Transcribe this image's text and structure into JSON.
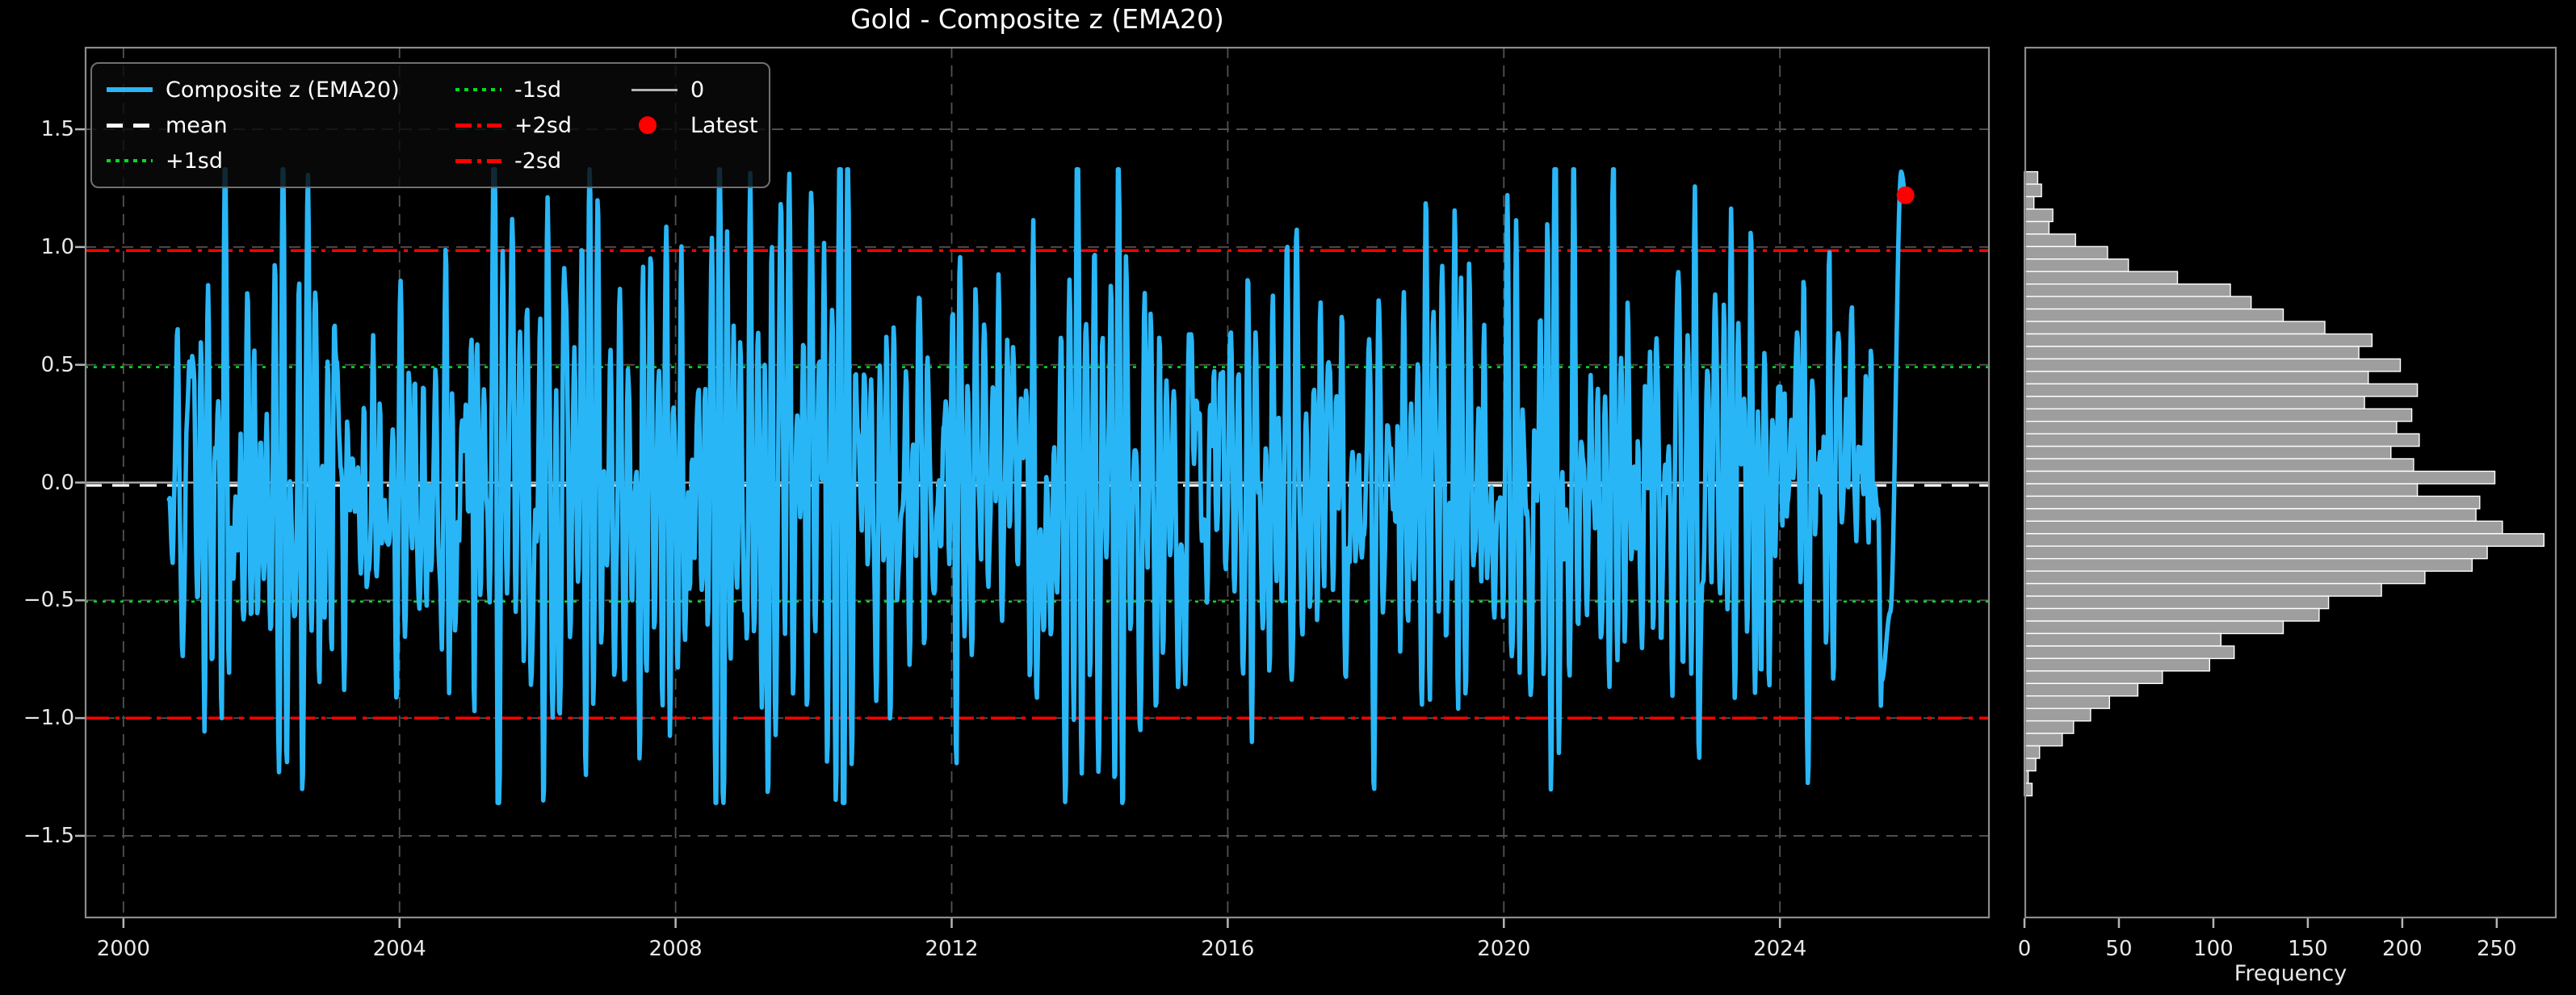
{
  "title": "Gold - Composite z (EMA20)",
  "colors": {
    "background": "#000000",
    "text": "#e8e8e8",
    "spine": "#8c8c8c",
    "grid": "#525252",
    "tick": "#b5b5b5",
    "series": "#29b6f6",
    "mean_line": "#ffffff",
    "sd1_line": "#00dd22",
    "sd2_line": "#ff0000",
    "zero_line": "#b3b3b3",
    "latest_marker": "#ff0000",
    "hist_bar_fill": "#9e9e9e",
    "hist_bar_edge": "#ffffff"
  },
  "main_plot": {
    "xticks": [
      {
        "value": 2000,
        "label": "2000"
      },
      {
        "value": 2004,
        "label": "2004"
      },
      {
        "value": 2008,
        "label": "2008"
      },
      {
        "value": 2012,
        "label": "2012"
      },
      {
        "value": 2016,
        "label": "2016"
      },
      {
        "value": 2020,
        "label": "2020"
      },
      {
        "value": 2024,
        "label": "2024"
      }
    ],
    "yticks": [
      {
        "value": 1.5,
        "label": "1.5"
      },
      {
        "value": 1.0,
        "label": "1.0"
      },
      {
        "value": 0.5,
        "label": "0.5"
      },
      {
        "value": 0.0,
        "label": "0.0"
      },
      {
        "value": -0.5,
        "label": "−0.5"
      },
      {
        "value": -1.0,
        "label": "−1.0"
      },
      {
        "value": -1.5,
        "label": "−1.5"
      }
    ]
  },
  "histogram": {
    "xlabel": "Frequency",
    "xticks": [
      {
        "value": 0,
        "label": "0"
      },
      {
        "value": 50,
        "label": "50"
      },
      {
        "value": 100,
        "label": "100"
      },
      {
        "value": 150,
        "label": "150"
      },
      {
        "value": 200,
        "label": "200"
      },
      {
        "value": 250,
        "label": "250"
      }
    ]
  },
  "legend": {
    "columns": [
      [
        {
          "label": "Composite z (EMA20)",
          "swatch": "line-solid-cyan"
        },
        {
          "label": "mean",
          "swatch": "line-dashed-white"
        },
        {
          "label": "+1sd",
          "swatch": "line-dotted-green"
        }
      ],
      [
        {
          "label": "-1sd",
          "swatch": "line-dotted-green"
        },
        {
          "label": "+2sd",
          "swatch": "line-dashdot-red"
        },
        {
          "label": "-2sd",
          "swatch": "line-dashdot-red"
        }
      ],
      [
        {
          "label": "0",
          "swatch": "line-solid-gray"
        },
        {
          "label": "Latest",
          "swatch": "marker-red-dot"
        }
      ]
    ]
  },
  "chart_data": [
    {
      "type": "line",
      "title": "Gold - Composite z (EMA20)",
      "xlabel": "",
      "ylabel": "",
      "legend_position": "upper left",
      "grid": {
        "on": true,
        "x_values": [
          2000,
          2004,
          2008,
          2012,
          2016,
          2020,
          2024
        ],
        "y_values": [
          -1.5,
          -1.0,
          -0.5,
          0.0,
          0.5,
          1.0,
          1.5
        ]
      },
      "xlim": [
        1999.44,
        2027.04
      ],
      "ylim": [
        -1.85,
        1.85
      ],
      "series_name": "Composite z (EMA20)",
      "series_spec": {
        "comment": "Dense daily z-score series 2000-2025, oscillating around 0, std ~0.55, extremes -1.36 to +1.33; reproduced as seeded pseudo-random oscillator since individual values are not resolvable from pixels",
        "seed": 20,
        "points": 2400,
        "x_start": 2000.66,
        "x_end": 2025.82,
        "osc_freq2": 0.32,
        "damping": 0.12,
        "noise": 0.3,
        "target_mean": -0.02,
        "target_std": 0.55,
        "clip": [
          -1.36,
          1.33
        ],
        "tail": {
          "dip": -0.55,
          "peak": 1.32,
          "end": 1.22
        }
      },
      "reference_lines": [
        {
          "name": "0",
          "y": 0.0,
          "color": "#b3b3b3",
          "style": "solid",
          "width": 2.2
        },
        {
          "name": "+1sd",
          "y": 0.49,
          "color": "#00dd22",
          "style": "dotted",
          "width": 2.6
        },
        {
          "name": "-1sd",
          "y": -0.505,
          "color": "#00dd22",
          "style": "dotted",
          "width": 2.6
        },
        {
          "name": "+2sd",
          "y": 0.985,
          "color": "#ff0000",
          "style": "dashdot",
          "width": 3.6
        },
        {
          "name": "-2sd",
          "y": -1.0,
          "color": "#ff0000",
          "style": "dashdot",
          "width": 3.6
        },
        {
          "name": "mean",
          "y": -0.012,
          "color": "#ffffff",
          "style": "dashed",
          "width": 3.2
        }
      ],
      "latest_point": {
        "x": 2025.82,
        "y": 1.22,
        "color": "#ff0000",
        "radius": 11,
        "label": "Latest"
      }
    },
    {
      "type": "bar",
      "orientation": "horizontal",
      "xlabel": "Frequency",
      "xlim": [
        0,
        281.7
      ],
      "bins": {
        "comment": "50 bins top-to-bottom; z_top is upper edge of first (highest-z) bin",
        "z_top": 1.32,
        "bin_width": 0.053,
        "values": [
          7,
          9,
          5,
          15,
          13,
          27,
          44,
          55,
          81,
          109,
          120,
          137,
          159,
          184,
          177,
          199,
          182,
          208,
          180,
          205,
          197,
          209,
          194,
          206,
          249,
          208,
          241,
          239,
          253,
          275,
          245,
          237,
          212,
          189,
          161,
          156,
          137,
          104,
          111,
          98,
          73,
          60,
          45,
          35,
          26,
          20,
          8,
          6,
          2,
          4
        ]
      }
    }
  ]
}
